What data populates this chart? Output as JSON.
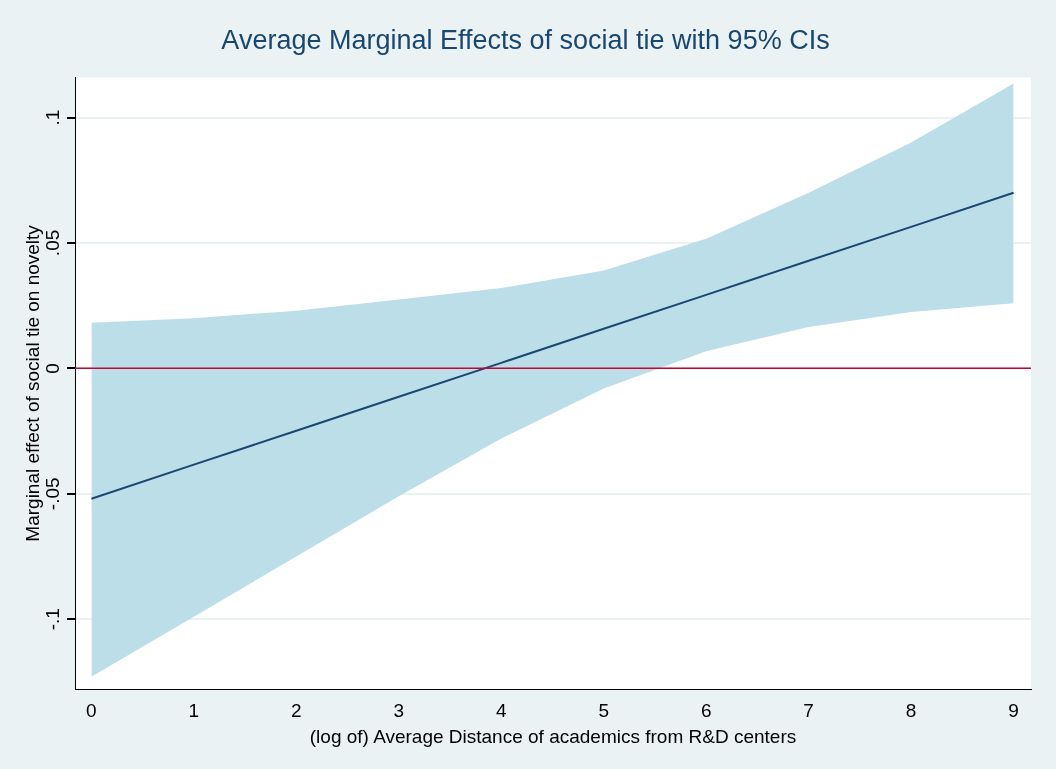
{
  "chart_data": {
    "type": "line",
    "title": "Average Marginal Effects of social tie with 95% CIs",
    "xlabel": "(log of) Average Distance of academics from R&D centers",
    "ylabel": "Marginal effect of social tie on novelty",
    "x": [
      0,
      1,
      2,
      3,
      4,
      5,
      6,
      7,
      8,
      9
    ],
    "series": [
      {
        "color": "#1a476f",
        "values": [
          -0.052,
          -0.0384,
          -0.0249,
          -0.0113,
          0.0022,
          0.0158,
          0.0293,
          0.0429,
          0.0564,
          0.07
        ],
        "lower": [
          -0.123,
          -0.099,
          -0.075,
          -0.051,
          -0.028,
          -0.008,
          0.0068,
          0.0165,
          0.0225,
          0.026
        ],
        "upper": [
          0.0182,
          0.02,
          0.023,
          0.0275,
          0.032,
          0.039,
          0.0517,
          0.07,
          0.09,
          0.1136
        ]
      }
    ],
    "xlim": [
      -0.16,
      9.17
    ],
    "ylim": [
      -0.128,
      0.116
    ],
    "xticks": [
      0,
      1,
      2,
      3,
      4,
      5,
      6,
      7,
      8,
      9
    ],
    "yticks": [
      {
        "value": -0.1,
        "label": "-.1"
      },
      {
        "value": -0.05,
        "label": "-.05"
      },
      {
        "value": 0,
        "label": "0"
      },
      {
        "value": 0.05,
        "label": ".05"
      },
      {
        "value": 0.1,
        "label": ".1"
      }
    ],
    "grid": "y",
    "legend": false,
    "marker": "none",
    "line_style": "solid",
    "ref_lines": [
      {
        "axis": "y",
        "value": 0,
        "color": "#c10534"
      }
    ]
  }
}
